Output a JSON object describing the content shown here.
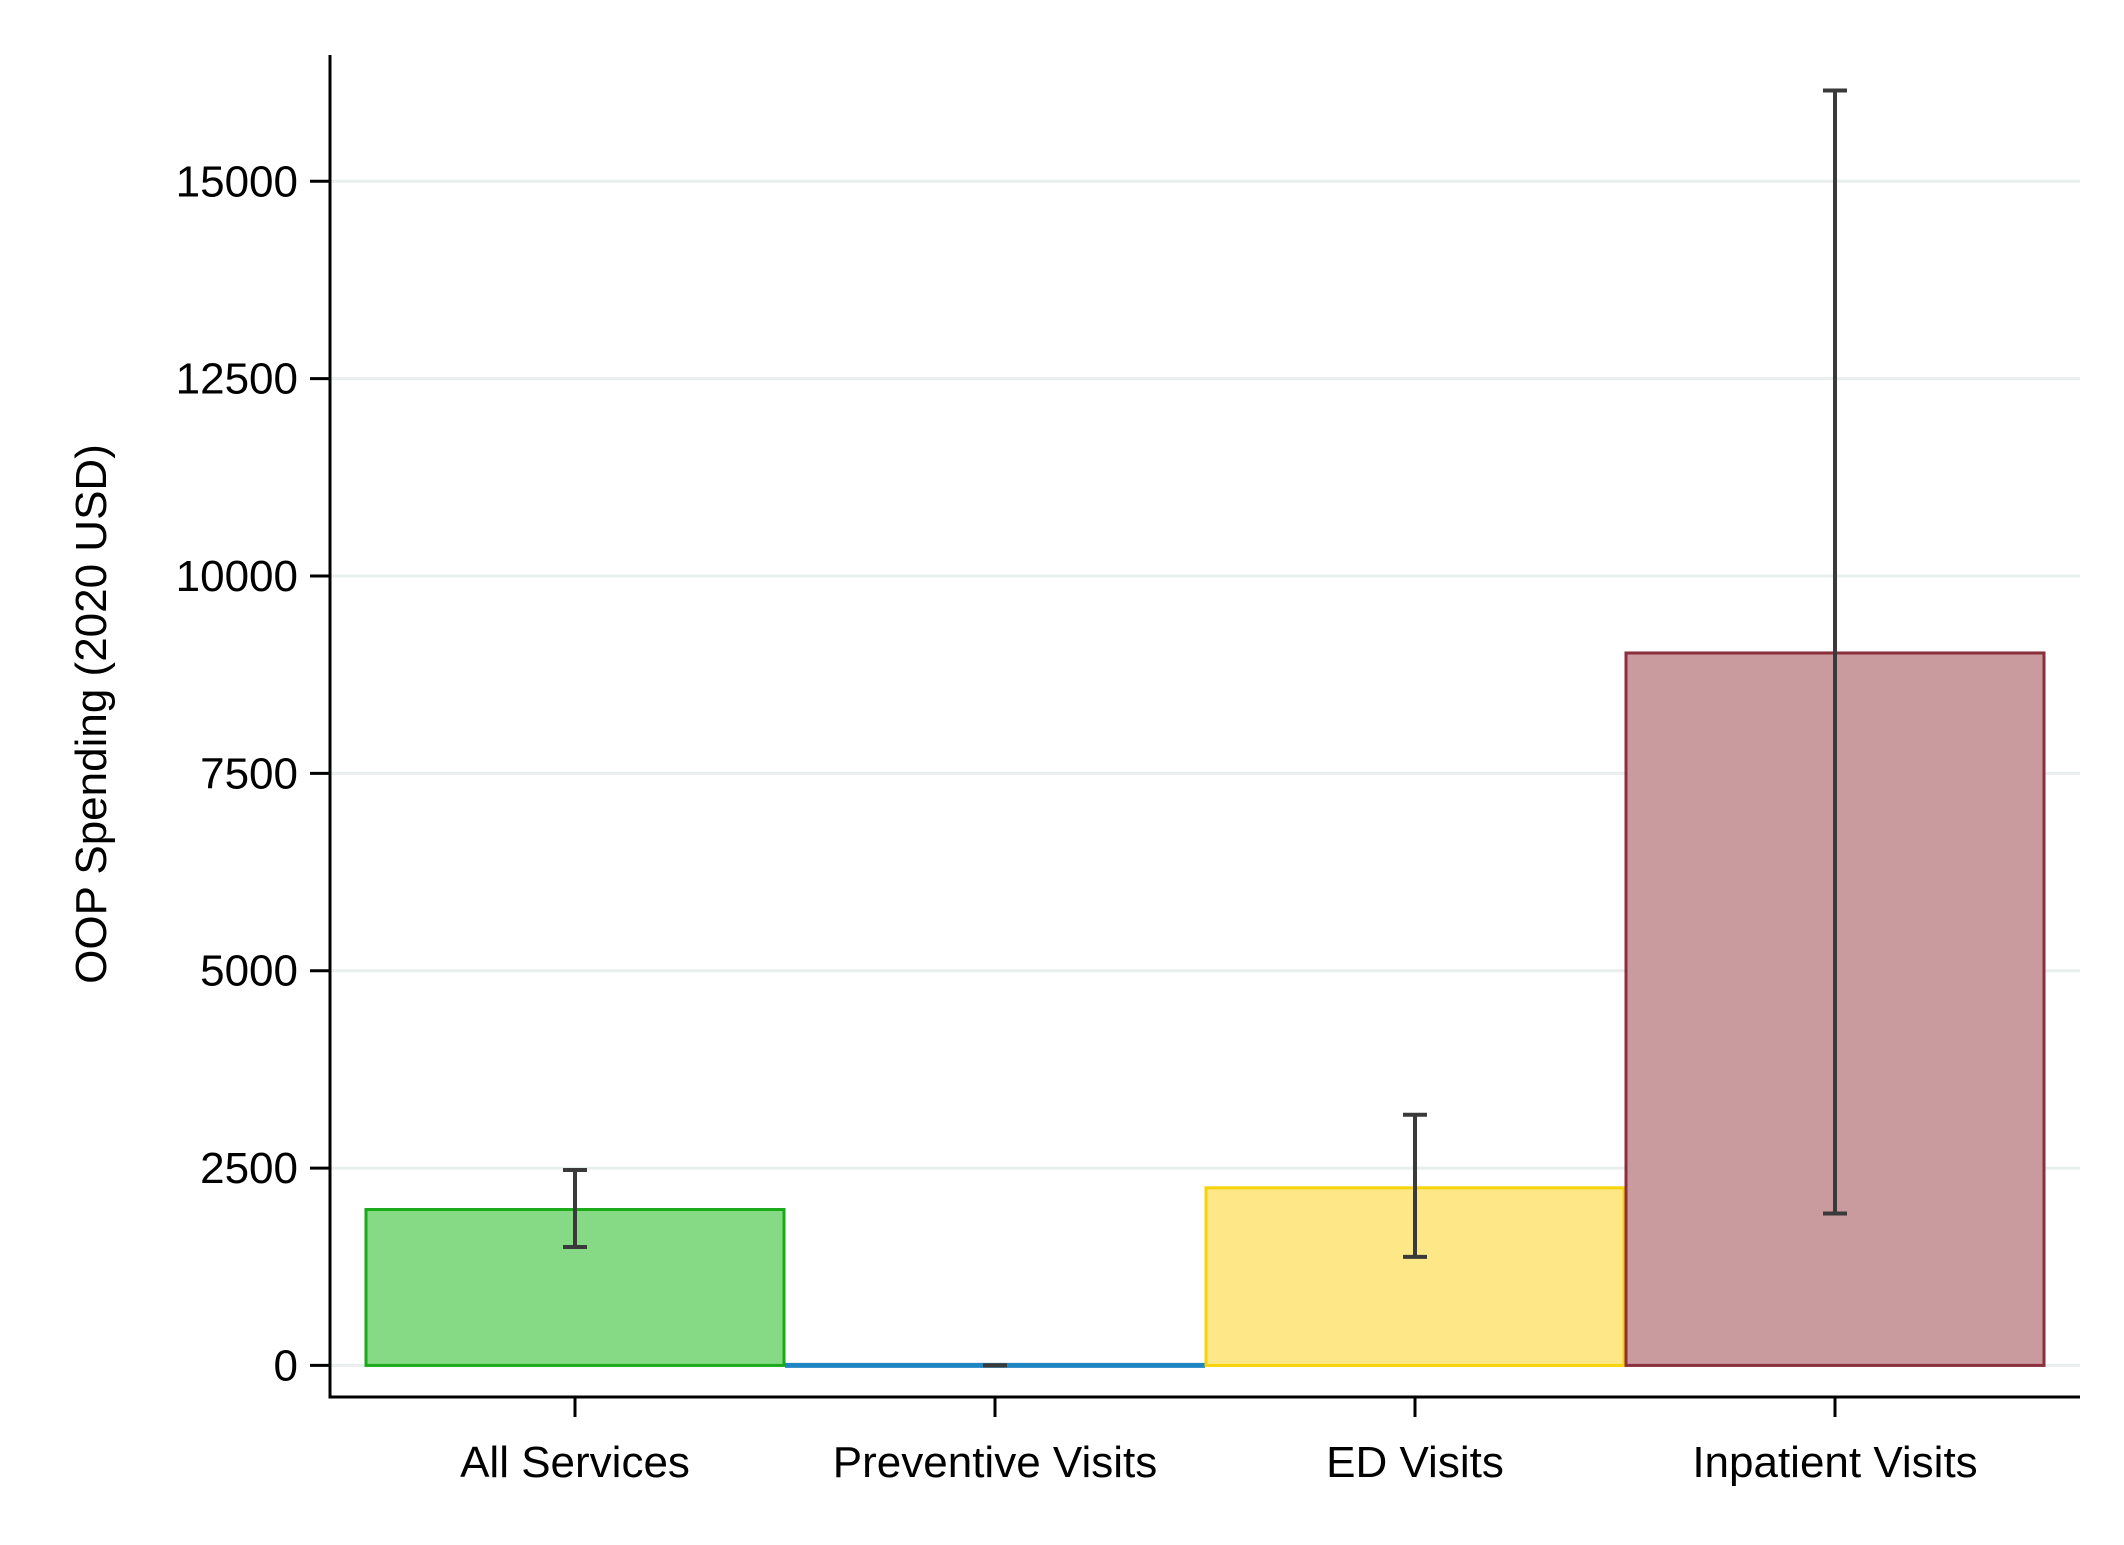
{
  "chart_data": {
    "type": "bar",
    "title": "",
    "xlabel": "",
    "ylabel": "OOP Spending (2020 USD)",
    "ylim": [
      -400,
      16600
    ],
    "yticks": [
      0,
      2500,
      5000,
      7500,
      10000,
      12500,
      15000
    ],
    "ytick_labels": [
      "0",
      "2500",
      "5000",
      "7500",
      "10000",
      "12500",
      "15000"
    ],
    "grid": true,
    "legend": "none",
    "categories": [
      "All Services",
      "Preventive Visits",
      "ED Visits",
      "Inpatient Visits"
    ],
    "values": [
      1975,
      0,
      2250,
      9025
    ],
    "error_low": [
      1500,
      0,
      1375,
      1925
    ],
    "error_high": [
      2475,
      0,
      3175,
      16150
    ],
    "colors": {
      "fills": [
        "#86d985",
        "#1f86c3",
        "#fee787",
        "#c99b9e"
      ],
      "strokes": [
        "#1aaa1a",
        "#1f86c3",
        "#f7d30a",
        "#8c2f3c"
      ],
      "grid": "#e8efee",
      "axis": "#000000",
      "errorbar": "#3a3a3a"
    }
  }
}
